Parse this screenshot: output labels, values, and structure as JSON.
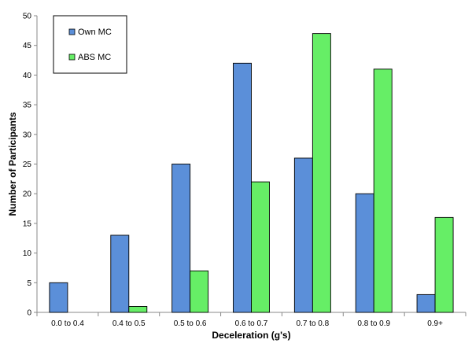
{
  "chart_data": {
    "type": "bar",
    "categories": [
      "0.0 to 0.4",
      "0.4 to 0.5",
      "0.5 to 0.6",
      "0.6 to 0.7",
      "0.7 to 0.8",
      "0.8 to 0.9",
      "0.9+"
    ],
    "series": [
      {
        "name": "Own MC",
        "color": "#5b8fd9",
        "values": [
          5,
          13,
          25,
          42,
          26,
          20,
          3
        ]
      },
      {
        "name": "ABS MC",
        "color": "#66ee66",
        "values": [
          0,
          1,
          7,
          22,
          47,
          41,
          16
        ]
      }
    ],
    "xlabel": "Deceleration (g's)",
    "ylabel": "Number of Participants",
    "ylim": [
      0,
      50
    ],
    "yticks": [
      0,
      5,
      10,
      15,
      20,
      25,
      30,
      35,
      40,
      45,
      50
    ],
    "grid": false,
    "legend_position": "top-left"
  }
}
